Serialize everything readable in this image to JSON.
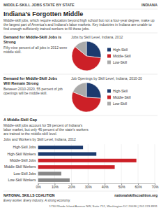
{
  "title": "Indiana’s Forgotten Middle",
  "subtitle": "Middle-skill jobs, which require education beyond high school but not a four-year degree, make up the largest part of America’s and Indiana’s labor markets. Key industries in Indiana are unable to find enough sufficiently trained workers to fill these jobs.",
  "annotations": [
    "MIDDLE-SKILL JOBS STATE BY STATE",
    "INDIANA",
    "NATIONAL SKILLS COALITION",
    "Every worker. Every industry. A strong economy.",
    "nationalskillscoalition.org",
    "1730 Rhode Island Avenue NW, Suite 712, Washington DC 20036 | 202.223.8991"
  ],
  "chart_data": [
    {
      "type": "pie",
      "title": "Jobs by Skill Level, Indiana, 2012",
      "annotations": [
        "Demand for Middle-Skill Jobs is Strong",
        "Fifty-nine percent of all jobs in 2012 were middle skill."
      ],
      "categories": [
        "High-Skill",
        "Middle-Skill",
        "Low-Skill"
      ],
      "values": [
        27,
        59,
        14
      ],
      "colors": [
        "#1c3a6e",
        "#cc2027",
        "#aaaaaa"
      ],
      "legend": "right"
    },
    {
      "type": "pie",
      "title": "Job Openings by Skill Level, Indiana, 2010-20",
      "annotations": [
        "Demand for Middle-Skill Jobs\nWill Remain Strong",
        "Between 2010-2020, 55 percent of job\nopenings will be middle skill."
      ],
      "categories": [
        "High-Skill",
        "Middle-Skill",
        "Low-Skill"
      ],
      "values": [
        26,
        55,
        19
      ],
      "colors": [
        "#1c3a6e",
        "#cc2027",
        "#aaaaaa"
      ],
      "legend": "right"
    },
    {
      "type": "bar",
      "orientation": "horizontal",
      "title": "Jobs and Workers by Skill Level, Indiana, 2012",
      "annotations": [
        "A Middle-Skill Gap",
        "Middle-skill jobs account for 59 percent of Indiana’s\nlabor market, but only 46 percent of the state’s workers\nare trained to the middle-skill level."
      ],
      "categories": [
        "High-Skill Jobs",
        "High-Skill Workers",
        "Middle-Skill Jobs",
        "Middle-Skill Workers",
        "Low-Skill Jobs",
        "Low-Skill Workers"
      ],
      "values": [
        27,
        35,
        59,
        46,
        14,
        19
      ],
      "colors": [
        "#1c3a6e",
        "#1c3a6e",
        "#cc2027",
        "#cc2027",
        "#888888",
        "#888888"
      ],
      "xlim": [
        0,
        70
      ],
      "xticks": [
        {
          "value": 0,
          "label": "0%"
        },
        {
          "value": 10,
          "label": "10%"
        },
        {
          "value": 20,
          "label": "20%"
        },
        {
          "value": 30,
          "label": "30%"
        },
        {
          "value": 40,
          "label": "40%"
        },
        {
          "value": 50,
          "label": "50%"
        },
        {
          "value": 60,
          "label": "60%"
        },
        {
          "value": 70,
          "label": "70%"
        }
      ],
      "grid": true
    }
  ]
}
